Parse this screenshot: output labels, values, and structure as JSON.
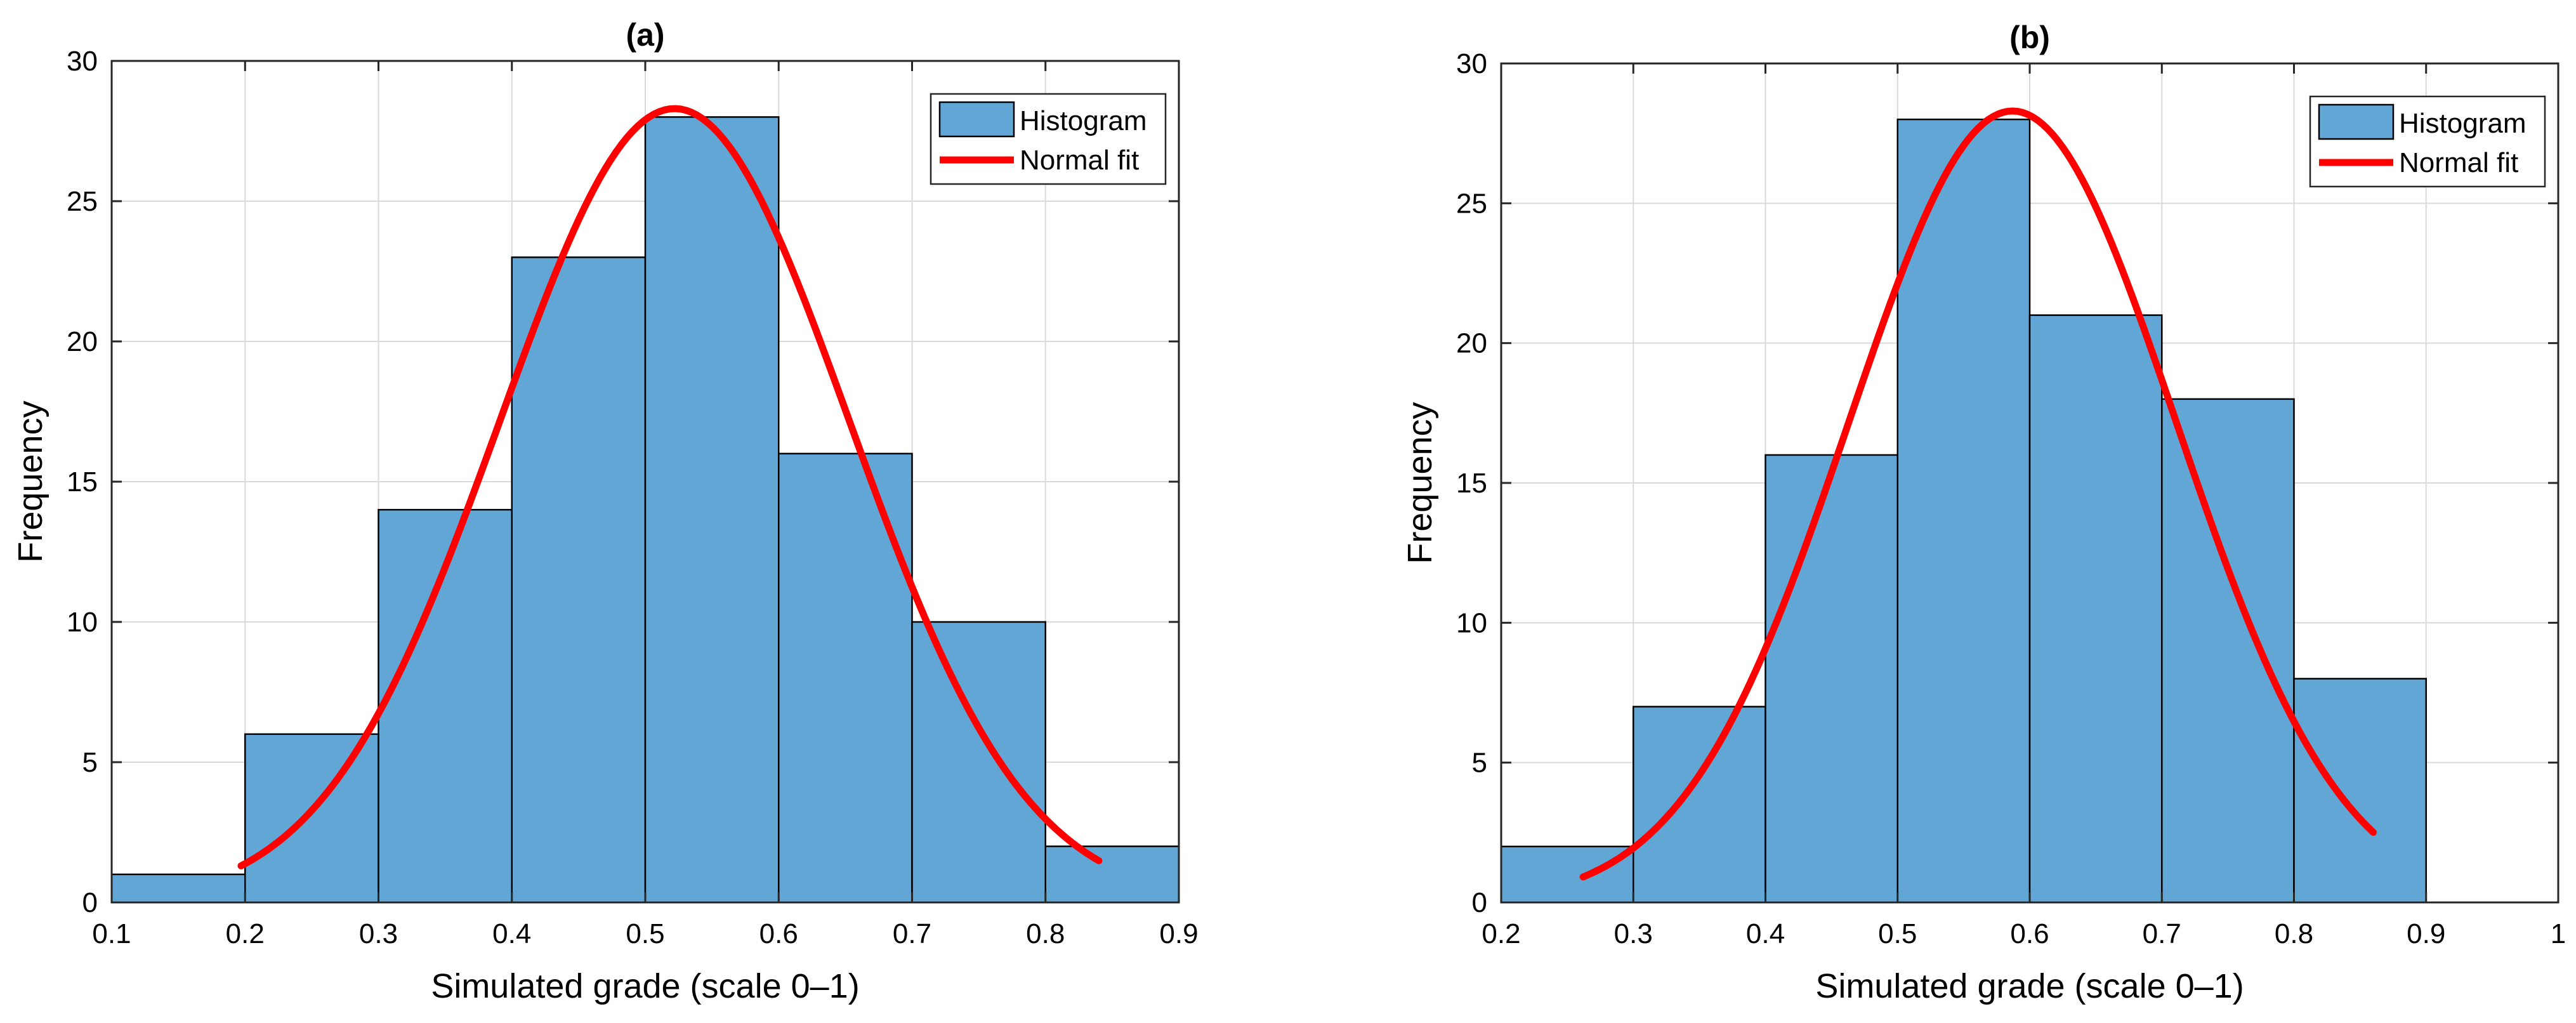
{
  "figure": {
    "panels_count": 2
  },
  "chart_data": [
    {
      "type": "bar",
      "panel": "a",
      "title": "(a)",
      "xlabel": "Simulated grade (scale 0–1)",
      "ylabel": "Frequency",
      "xlim": [
        0.1,
        0.9
      ],
      "ylim": [
        0,
        30
      ],
      "xticks": [
        0.1,
        0.2,
        0.3,
        0.4,
        0.5,
        0.6,
        0.7,
        0.8,
        0.9
      ],
      "yticks": [
        0,
        5,
        10,
        15,
        20,
        25,
        30
      ],
      "grid": true,
      "legend_location": "top-right",
      "legend": [
        "Histogram",
        "Normal fit"
      ],
      "series": [
        {
          "name": "Histogram",
          "kind": "histogram",
          "color": "#62a6d6",
          "bin_edges": [
            0.1,
            0.2,
            0.3,
            0.4,
            0.5,
            0.6,
            0.7,
            0.8,
            0.9
          ],
          "values": [
            1,
            6,
            14,
            23,
            28,
            16,
            10,
            2
          ]
        },
        {
          "name": "Normal fit",
          "kind": "line",
          "color": "#ff0000",
          "mean": 0.522,
          "sd": 0.131,
          "peak": 28.3,
          "x_range": [
            0.197,
            0.84
          ]
        }
      ]
    },
    {
      "type": "bar",
      "panel": "b",
      "title": "(b)",
      "xlabel": "Simulated grade (scale 0–1)",
      "ylabel": "Frequency",
      "xlim": [
        0.2,
        1.0
      ],
      "ylim": [
        0,
        30
      ],
      "xticks": [
        0.2,
        0.3,
        0.4,
        0.5,
        0.6,
        0.7,
        0.8,
        0.9,
        1
      ],
      "xtick_labels": [
        "0.2",
        "0.3",
        "0.4",
        "0.5",
        "0.6",
        "0.7",
        "0.8",
        "0.9",
        "1"
      ],
      "yticks": [
        0,
        5,
        10,
        15,
        20,
        25,
        30
      ],
      "grid": true,
      "legend_location": "top-right",
      "legend": [
        "Histogram",
        "Normal fit"
      ],
      "series": [
        {
          "name": "Histogram",
          "kind": "histogram",
          "color": "#62a6d6",
          "bin_edges": [
            0.2,
            0.3,
            0.4,
            0.5,
            0.6,
            0.7,
            0.8,
            0.9
          ],
          "values": [
            2,
            7,
            16,
            28,
            21,
            18,
            8
          ]
        },
        {
          "name": "Normal fit",
          "kind": "line",
          "color": "#ff0000",
          "mean": 0.587,
          "sd": 0.124,
          "peak": 28.3,
          "x_range": [
            0.262,
            0.86
          ]
        }
      ]
    }
  ]
}
